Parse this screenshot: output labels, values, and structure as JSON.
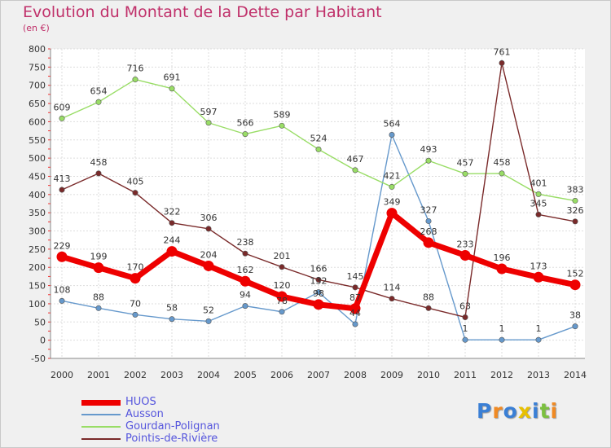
{
  "header": {
    "title": "Evolution du Montant de la Dette par Habitant",
    "subtitle": "(en €)"
  },
  "logo": {
    "text": "Proxiti",
    "colors": [
      "#3a7fd5",
      "#f08a24",
      "#3a7fd5",
      "#e8c000",
      "#3a7fd5",
      "#7cc040",
      "#f08a24"
    ]
  },
  "chart_data": {
    "type": "line",
    "categories": [
      "2000",
      "2001",
      "2002",
      "2003",
      "2004",
      "2005",
      "2006",
      "2007",
      "2008",
      "2009",
      "2010",
      "2011",
      "2012",
      "2013",
      "2014"
    ],
    "ylim": [
      -50,
      800
    ],
    "yticks": [
      -50,
      0,
      50,
      100,
      150,
      200,
      250,
      300,
      350,
      400,
      450,
      500,
      550,
      600,
      650,
      700,
      750,
      800
    ],
    "grid": true,
    "legend_position": "bottom-left",
    "series": [
      {
        "name": "HUOS",
        "color": "#ee0000",
        "width": "thick",
        "values": [
          229,
          199,
          170,
          244,
          204,
          162,
          120,
          98,
          87,
          349,
          268,
          233,
          196,
          173,
          152
        ],
        "labels": [
          "229",
          "199",
          "170",
          "244",
          "204",
          "162",
          "120",
          "98",
          "87",
          "349",
          "268",
          "233",
          "196",
          "173",
          "152"
        ]
      },
      {
        "name": "Ausson",
        "color": "#6699cc",
        "width": "thin",
        "values": [
          108,
          88,
          70,
          58,
          52,
          94,
          78,
          132,
          44,
          564,
          327,
          1,
          1,
          1,
          38
        ],
        "labels": [
          "108",
          "88",
          "70",
          "58",
          "52",
          "94",
          "78",
          "132",
          "44",
          "564",
          "327",
          "1",
          "1",
          "1",
          "38"
        ]
      },
      {
        "name": "Gourdan-Polignan",
        "color": "#99dd66",
        "width": "thin",
        "values": [
          609,
          654,
          716,
          691,
          597,
          566,
          589,
          524,
          467,
          421,
          493,
          457,
          458,
          401,
          383
        ],
        "labels": [
          "609",
          "654",
          "716",
          "691",
          "597",
          "566",
          "589",
          "524",
          "467",
          "421",
          "493",
          "457",
          "458",
          "401",
          "383"
        ]
      },
      {
        "name": "Pointis-de-Rivière",
        "color": "#7a2a2a",
        "width": "thin",
        "values": [
          413,
          458,
          405,
          322,
          306,
          238,
          201,
          166,
          145,
          114,
          88,
          63,
          761,
          345,
          326
        ],
        "labels": [
          "413",
          "458",
          "405",
          "322",
          "306",
          "238",
          "201",
          "166",
          "145",
          "114",
          "88",
          "63",
          "761",
          "345",
          "326"
        ]
      }
    ]
  }
}
